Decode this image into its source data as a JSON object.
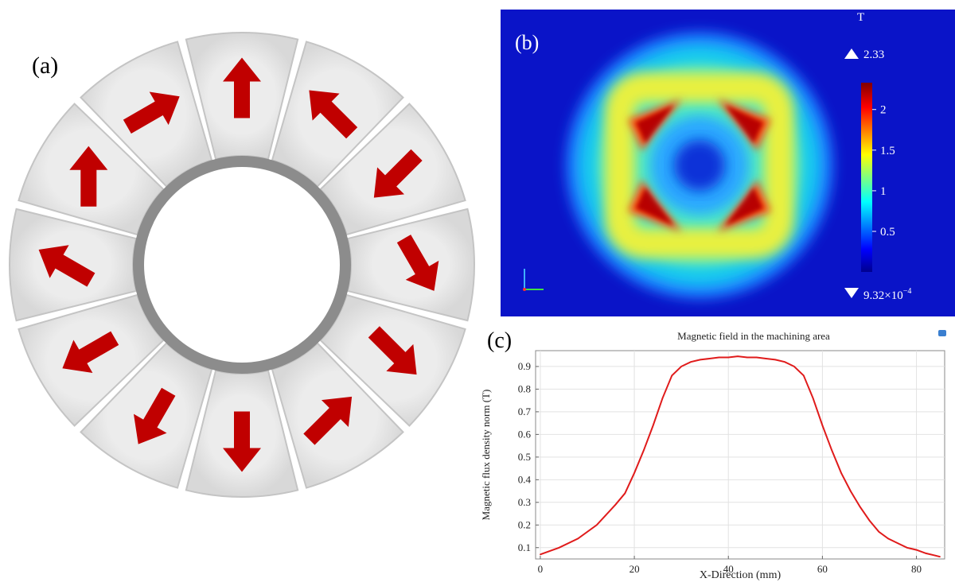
{
  "panels": {
    "a_label": "(a)",
    "b_label": "(b)",
    "c_label": "(c)"
  },
  "halbach_ring": {
    "segments": 12,
    "arrow_color": "#c00000",
    "segment_color": "#e4e4e4",
    "inner_ring_color": "#8a8a8a",
    "arrow_directions_deg": [
      90,
      135,
      225,
      300,
      315,
      45,
      270,
      240,
      210,
      150,
      90,
      30
    ]
  },
  "colorbar": {
    "unit": "T",
    "max_label": "2.33",
    "min_label": "9.32×10",
    "min_exp": "−4",
    "ticks": [
      {
        "value": 2,
        "label": "2"
      },
      {
        "value": 1.5,
        "label": "1.5"
      },
      {
        "value": 1,
        "label": "1"
      },
      {
        "value": 0.5,
        "label": "0.5"
      }
    ],
    "range": [
      0.000932,
      2.33
    ]
  },
  "chart_data": {
    "type": "line",
    "title": "Magnetic field in the machining area",
    "xlabel": "X-Direction (mm)",
    "ylabel": "Magnetic flux density norm (T)",
    "xlim": [
      -1,
      86
    ],
    "ylim": [
      0.05,
      0.97
    ],
    "x_ticks": [
      0,
      20,
      40,
      60,
      80
    ],
    "y_ticks": [
      0.1,
      0.2,
      0.3,
      0.4,
      0.5,
      0.6,
      0.7,
      0.8,
      0.9
    ],
    "grid": true,
    "series": [
      {
        "color": "#e01b1b",
        "x": [
          0,
          4,
          8,
          12,
          16,
          18,
          20,
          22,
          24,
          26,
          28,
          30,
          32,
          34,
          36,
          38,
          40,
          42,
          44,
          46,
          48,
          50,
          52,
          54,
          56,
          58,
          60,
          62,
          64,
          66,
          68,
          70,
          72,
          74,
          76,
          78,
          80,
          82,
          84,
          85
        ],
        "y": [
          0.07,
          0.1,
          0.14,
          0.2,
          0.29,
          0.34,
          0.43,
          0.53,
          0.64,
          0.76,
          0.86,
          0.9,
          0.92,
          0.93,
          0.935,
          0.94,
          0.94,
          0.945,
          0.94,
          0.94,
          0.935,
          0.93,
          0.92,
          0.9,
          0.86,
          0.76,
          0.64,
          0.53,
          0.43,
          0.35,
          0.28,
          0.22,
          0.17,
          0.14,
          0.12,
          0.1,
          0.09,
          0.075,
          0.065,
          0.06
        ]
      }
    ]
  }
}
